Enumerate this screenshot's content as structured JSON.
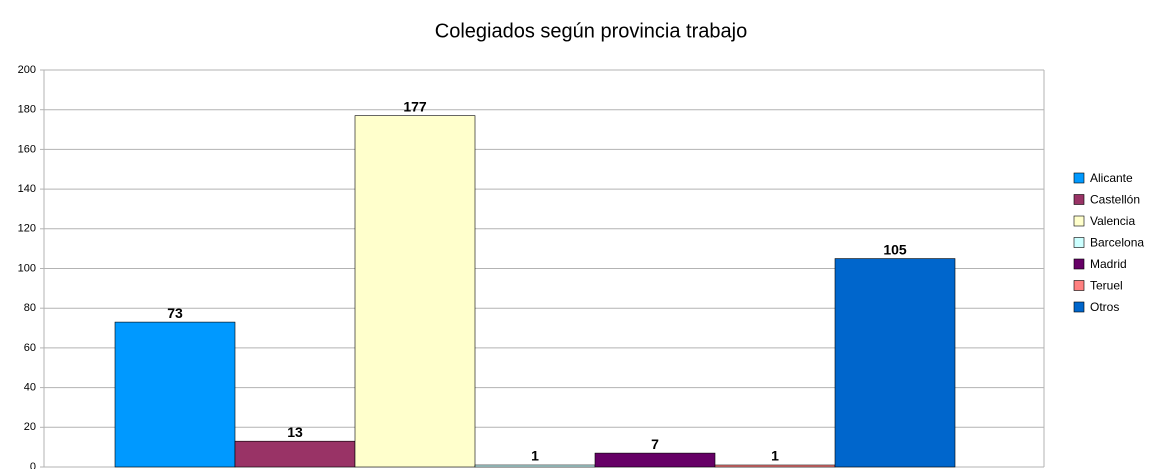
{
  "chart_data": {
    "type": "bar",
    "title": "Colegiados según provincia trabajo",
    "series": [
      {
        "name": "Alicante",
        "color": "#0099ff",
        "values": [
          73
        ]
      },
      {
        "name": "Castellón",
        "color": "#993366",
        "values": [
          13
        ]
      },
      {
        "name": "Valencia",
        "color": "#ffffcc",
        "values": [
          177
        ]
      },
      {
        "name": "Barcelona",
        "color": "#ccffff",
        "values": [
          1
        ]
      },
      {
        "name": "Madrid",
        "color": "#660066",
        "values": [
          7
        ]
      },
      {
        "name": "Teruel",
        "color": "#ff8080",
        "values": [
          1
        ]
      },
      {
        "name": "Otros",
        "color": "#0066cc",
        "values": [
          105
        ]
      }
    ],
    "ylim": [
      0,
      200
    ],
    "yticks": [
      0,
      20,
      40,
      60,
      80,
      100,
      120,
      140,
      160,
      180,
      200
    ],
    "grid": true,
    "legend": "right"
  }
}
